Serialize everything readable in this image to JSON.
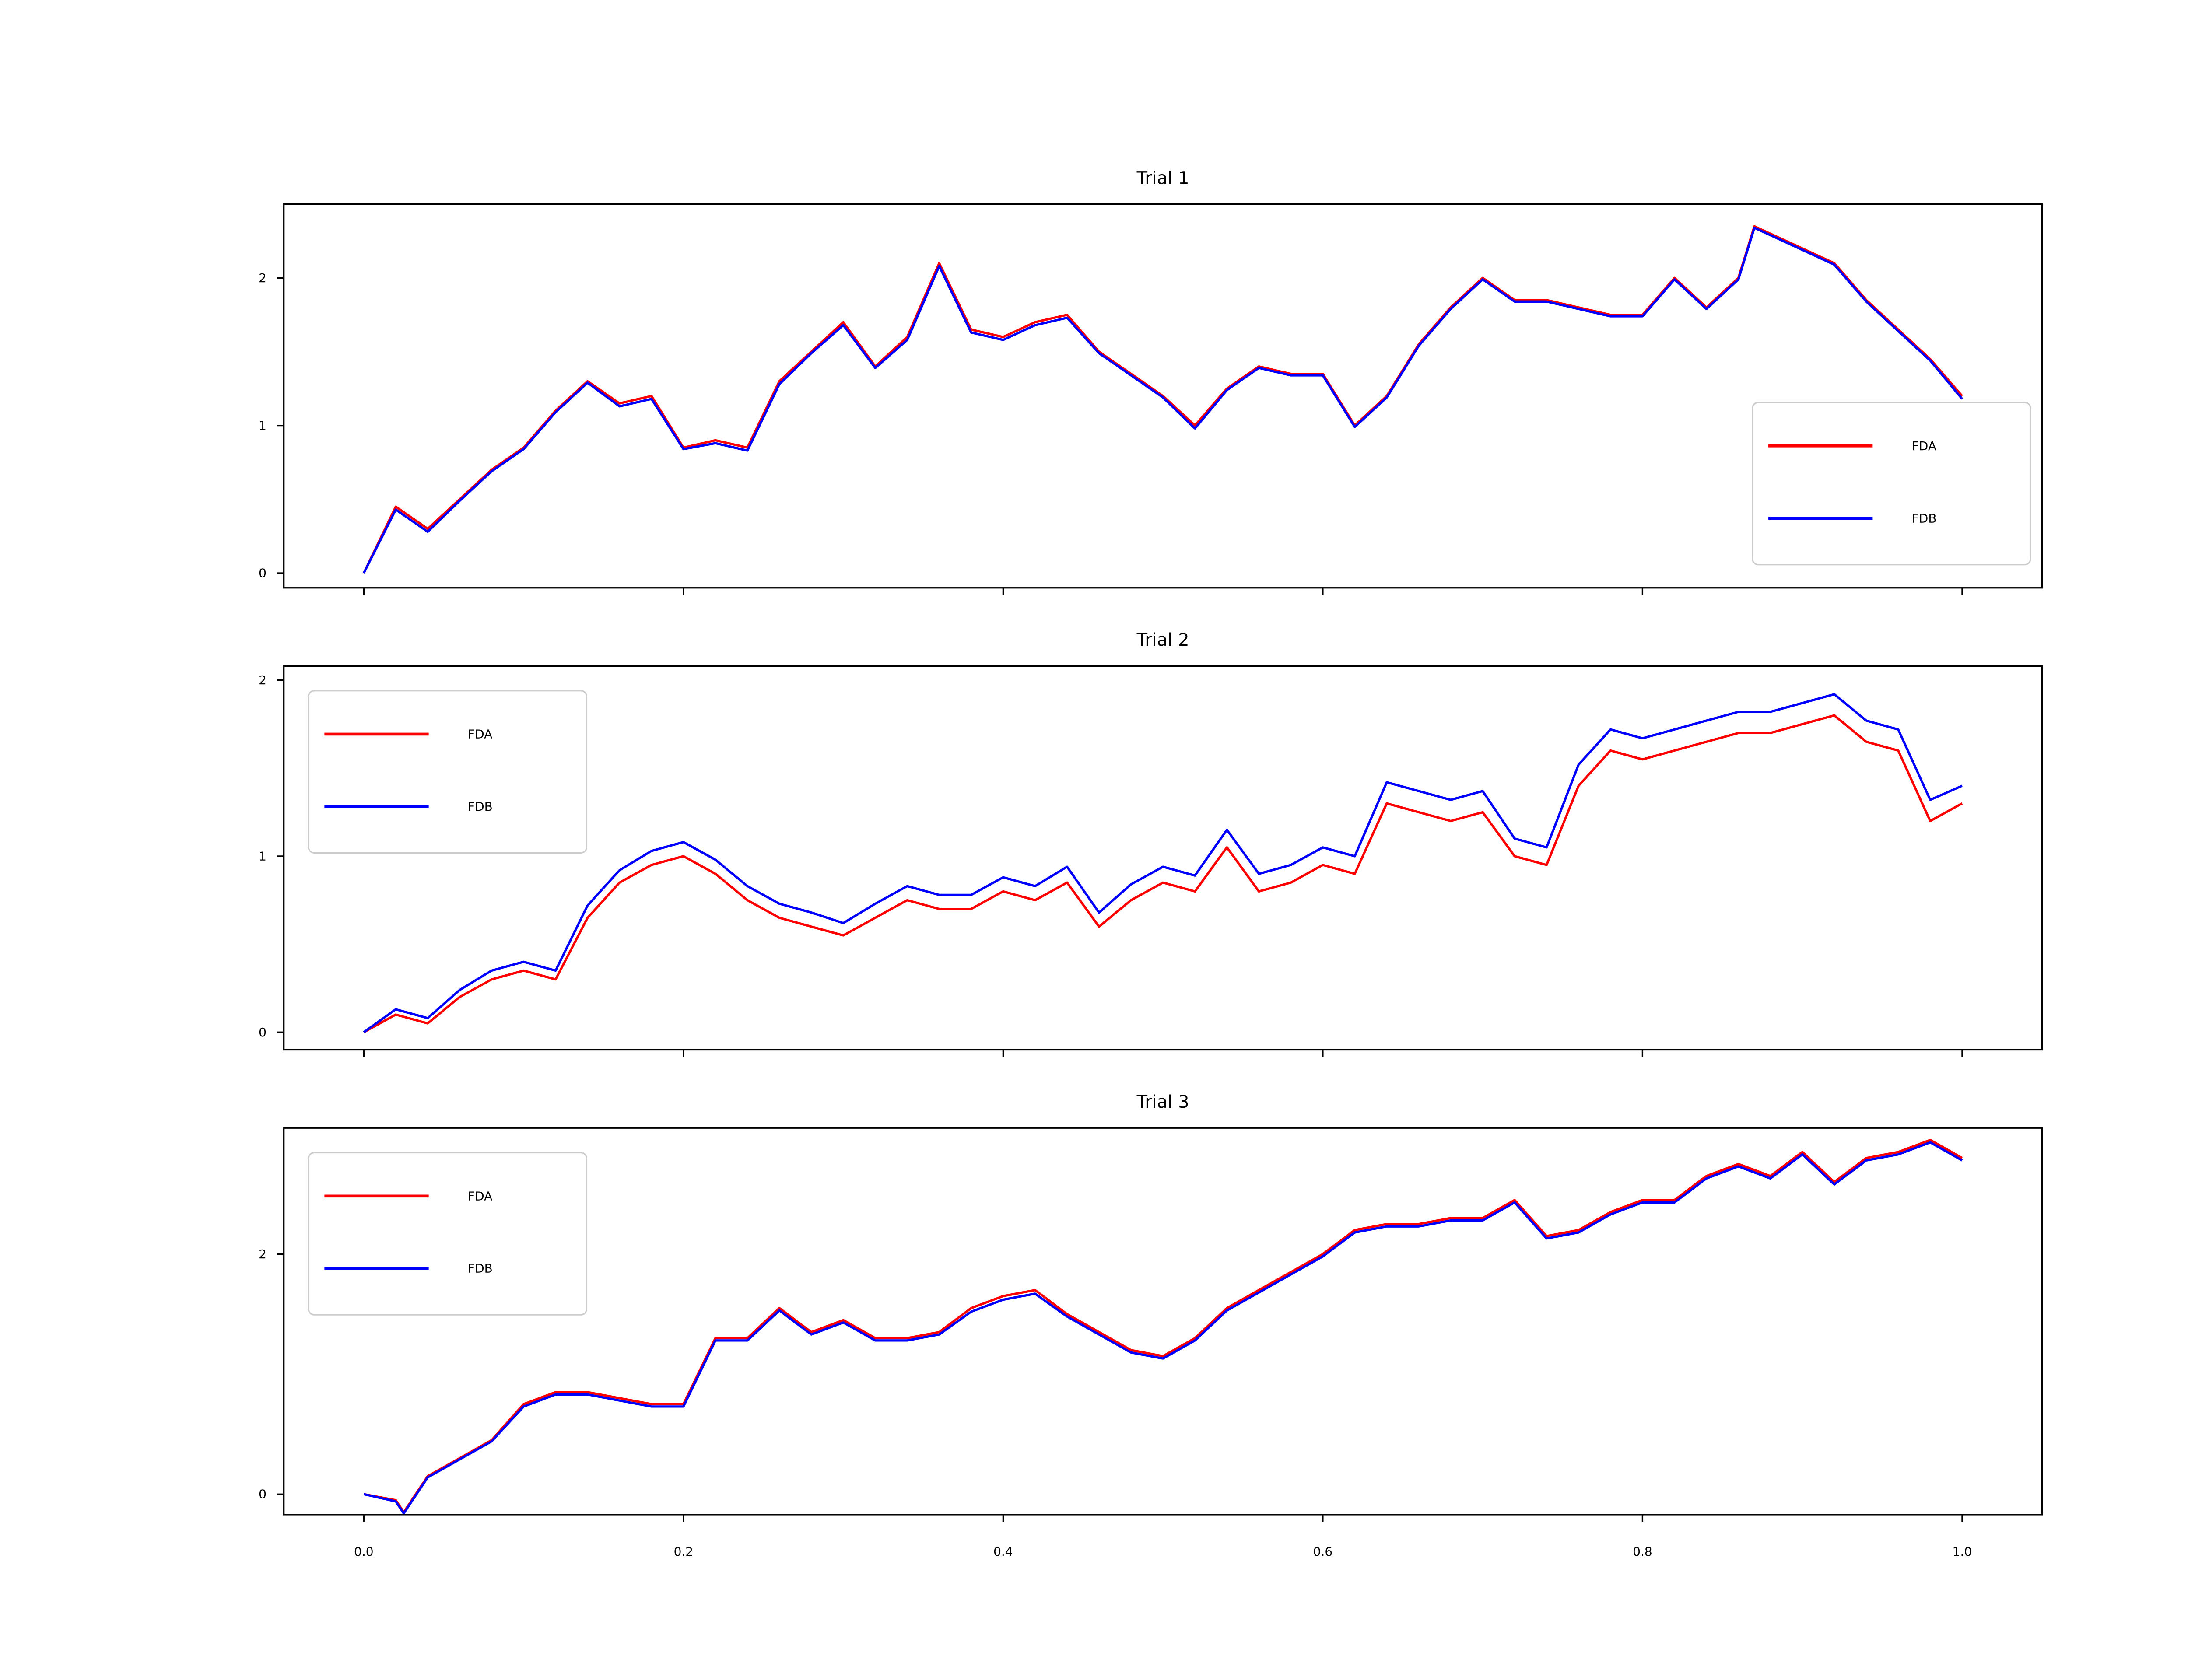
{
  "figure": {
    "background": "#ffffff"
  },
  "chart_data": [
    {
      "type": "line",
      "title": "Trial 1",
      "xlim": [
        -0.05,
        1.05
      ],
      "ylim": [
        -0.1,
        2.5
      ],
      "xticks": [
        0.0,
        0.2,
        0.4,
        0.6,
        0.8,
        1.0
      ],
      "yticks": [
        0,
        1,
        2
      ],
      "ytick_labels": [
        "0",
        "1",
        "2"
      ],
      "show_xtick_labels": false,
      "legend": {
        "placement": "lower-right"
      },
      "x": [
        0.0,
        0.02,
        0.04,
        0.06,
        0.08,
        0.1,
        0.12,
        0.14,
        0.16,
        0.18,
        0.2,
        0.22,
        0.24,
        0.26,
        0.28,
        0.3,
        0.32,
        0.34,
        0.36,
        0.38,
        0.4,
        0.42,
        0.44,
        0.46,
        0.48,
        0.5,
        0.52,
        0.54,
        0.56,
        0.58,
        0.6,
        0.62,
        0.64,
        0.66,
        0.68,
        0.7,
        0.72,
        0.74,
        0.76,
        0.78,
        0.8,
        0.82,
        0.84,
        0.86,
        0.87,
        0.9,
        0.92,
        0.94,
        0.96,
        0.98,
        1.0
      ],
      "series": [
        {
          "name": "FDA",
          "color": "#ff0000",
          "values": [
            0.0,
            0.45,
            0.3,
            0.5,
            0.7,
            0.85,
            1.1,
            1.3,
            1.15,
            1.2,
            0.85,
            0.9,
            0.85,
            1.3,
            1.5,
            1.7,
            1.4,
            1.6,
            2.1,
            1.65,
            1.6,
            1.7,
            1.75,
            1.5,
            1.35,
            1.2,
            1.0,
            1.25,
            1.4,
            1.35,
            1.35,
            1.0,
            1.2,
            1.55,
            1.8,
            2.0,
            1.85,
            1.85,
            1.8,
            1.75,
            1.75,
            2.0,
            1.8,
            2.0,
            2.35,
            2.2,
            2.1,
            1.85,
            1.65,
            1.45,
            1.2
          ]
        },
        {
          "name": "FDB",
          "color": "#0000ff",
          "values": [
            0.0,
            0.43,
            0.28,
            0.49,
            0.69,
            0.84,
            1.09,
            1.29,
            1.13,
            1.18,
            0.84,
            0.88,
            0.83,
            1.28,
            1.49,
            1.68,
            1.39,
            1.58,
            2.08,
            1.63,
            1.58,
            1.68,
            1.73,
            1.49,
            1.34,
            1.19,
            0.98,
            1.24,
            1.39,
            1.34,
            1.34,
            0.99,
            1.19,
            1.54,
            1.79,
            1.99,
            1.84,
            1.84,
            1.79,
            1.74,
            1.74,
            1.99,
            1.79,
            1.99,
            2.34,
            2.19,
            2.09,
            1.84,
            1.64,
            1.44,
            1.18
          ]
        }
      ]
    },
    {
      "type": "line",
      "title": "Trial 2",
      "xlim": [
        -0.05,
        1.05
      ],
      "ylim": [
        -0.1,
        2.08
      ],
      "xticks": [
        0.0,
        0.2,
        0.4,
        0.6,
        0.8,
        1.0
      ],
      "yticks": [
        0,
        1,
        2
      ],
      "ytick_labels": [
        "0",
        "1",
        "2"
      ],
      "show_xtick_labels": false,
      "legend": {
        "placement": "upper-left"
      },
      "x": [
        0.0,
        0.02,
        0.04,
        0.06,
        0.08,
        0.1,
        0.12,
        0.14,
        0.16,
        0.18,
        0.2,
        0.22,
        0.24,
        0.26,
        0.28,
        0.3,
        0.32,
        0.34,
        0.36,
        0.38,
        0.4,
        0.42,
        0.44,
        0.46,
        0.48,
        0.5,
        0.52,
        0.54,
        0.56,
        0.58,
        0.6,
        0.62,
        0.64,
        0.66,
        0.68,
        0.7,
        0.72,
        0.74,
        0.76,
        0.78,
        0.8,
        0.82,
        0.84,
        0.86,
        0.88,
        0.9,
        0.92,
        0.94,
        0.96,
        0.98,
        1.0
      ],
      "series": [
        {
          "name": "FDA",
          "color": "#ff0000",
          "values": [
            0.0,
            0.1,
            0.05,
            0.2,
            0.3,
            0.35,
            0.3,
            0.65,
            0.85,
            0.95,
            1.0,
            0.9,
            0.75,
            0.65,
            0.6,
            0.55,
            0.65,
            0.75,
            0.7,
            0.7,
            0.8,
            0.75,
            0.85,
            0.6,
            0.75,
            0.85,
            0.8,
            1.05,
            0.8,
            0.85,
            0.95,
            0.9,
            1.3,
            1.25,
            1.2,
            1.25,
            1.0,
            0.95,
            1.4,
            1.6,
            1.55,
            1.6,
            1.65,
            1.7,
            1.7,
            1.75,
            1.8,
            1.65,
            1.6,
            1.2,
            1.3
          ]
        },
        {
          "name": "FDB",
          "color": "#0000ff",
          "values": [
            0.0,
            0.13,
            0.08,
            0.24,
            0.35,
            0.4,
            0.35,
            0.72,
            0.92,
            1.03,
            1.08,
            0.98,
            0.83,
            0.73,
            0.68,
            0.62,
            0.73,
            0.83,
            0.78,
            0.78,
            0.88,
            0.83,
            0.94,
            0.68,
            0.84,
            0.94,
            0.89,
            1.15,
            0.9,
            0.95,
            1.05,
            1.0,
            1.42,
            1.37,
            1.32,
            1.37,
            1.1,
            1.05,
            1.52,
            1.72,
            1.67,
            1.72,
            1.77,
            1.82,
            1.82,
            1.87,
            1.92,
            1.77,
            1.72,
            1.32,
            1.4
          ]
        }
      ]
    },
    {
      "type": "line",
      "title": "Trial 3",
      "xlim": [
        -0.05,
        1.05
      ],
      "ylim": [
        -0.17,
        3.05
      ],
      "xticks": [
        0.0,
        0.2,
        0.4,
        0.6,
        0.8,
        1.0
      ],
      "xtick_labels": [
        "0.0",
        "0.2",
        "0.4",
        "0.6",
        "0.8",
        "1.0"
      ],
      "yticks": [
        0,
        2
      ],
      "ytick_labels": [
        "0",
        "2"
      ],
      "show_xtick_labels": true,
      "legend": {
        "placement": "upper-left"
      },
      "x": [
        0.0,
        0.02,
        0.025,
        0.04,
        0.06,
        0.08,
        0.1,
        0.12,
        0.14,
        0.16,
        0.18,
        0.2,
        0.22,
        0.24,
        0.26,
        0.28,
        0.3,
        0.32,
        0.34,
        0.36,
        0.38,
        0.4,
        0.42,
        0.44,
        0.46,
        0.48,
        0.5,
        0.52,
        0.54,
        0.56,
        0.58,
        0.6,
        0.62,
        0.64,
        0.66,
        0.68,
        0.7,
        0.72,
        0.74,
        0.76,
        0.78,
        0.8,
        0.82,
        0.84,
        0.86,
        0.88,
        0.9,
        0.92,
        0.94,
        0.96,
        0.98,
        1.0
      ],
      "series": [
        {
          "name": "FDA",
          "color": "#ff0000",
          "values": [
            0.0,
            -0.05,
            -0.15,
            0.15,
            0.3,
            0.45,
            0.75,
            0.85,
            0.85,
            0.8,
            0.75,
            0.75,
            1.3,
            1.3,
            1.55,
            1.35,
            1.45,
            1.3,
            1.3,
            1.35,
            1.55,
            1.65,
            1.7,
            1.5,
            1.35,
            1.2,
            1.15,
            1.3,
            1.55,
            1.7,
            1.85,
            2.0,
            2.2,
            2.25,
            2.25,
            2.3,
            2.3,
            2.45,
            2.15,
            2.2,
            2.35,
            2.45,
            2.45,
            2.65,
            2.75,
            2.65,
            2.85,
            2.6,
            2.8,
            2.85,
            2.95,
            2.8
          ]
        },
        {
          "name": "FDB",
          "color": "#0000ff",
          "values": [
            0.0,
            -0.06,
            -0.16,
            0.14,
            0.29,
            0.44,
            0.73,
            0.83,
            0.83,
            0.78,
            0.73,
            0.73,
            1.28,
            1.28,
            1.53,
            1.33,
            1.43,
            1.28,
            1.28,
            1.33,
            1.52,
            1.62,
            1.67,
            1.48,
            1.33,
            1.18,
            1.13,
            1.28,
            1.53,
            1.68,
            1.83,
            1.98,
            2.18,
            2.23,
            2.23,
            2.28,
            2.28,
            2.43,
            2.13,
            2.18,
            2.33,
            2.43,
            2.43,
            2.63,
            2.73,
            2.63,
            2.83,
            2.58,
            2.78,
            2.83,
            2.93,
            2.78
          ]
        }
      ]
    }
  ]
}
